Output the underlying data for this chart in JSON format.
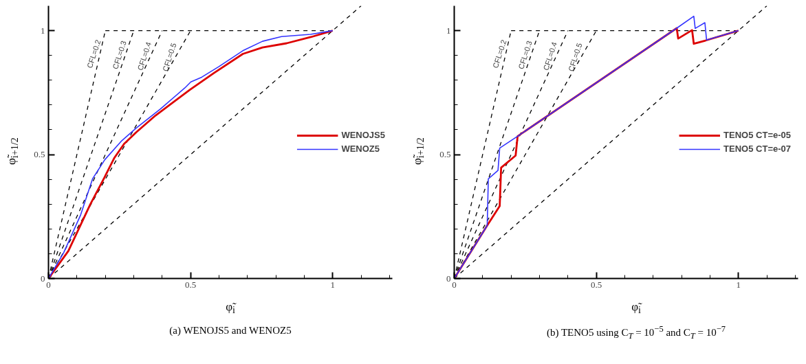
{
  "chart_data": [
    {
      "type": "line",
      "title": "(a) WENOJS5 and WENOZ5",
      "xlabel": "φ̃$_{i}$",
      "ylabel": "φ̃$_{i+1/2}$",
      "xlim": [
        0,
        1.21
      ],
      "ylim": [
        0,
        1.1
      ],
      "xticks": [
        0,
        {
          "value": 0.1,
          "label": null
        },
        {
          "value": 0.2,
          "label": null
        },
        {
          "value": 0.3,
          "label": null
        },
        {
          "value": 0.4,
          "label": null
        },
        0.5,
        {
          "value": 0.6,
          "label": null
        },
        {
          "value": 0.7,
          "label": null
        },
        {
          "value": 0.8,
          "label": null
        },
        {
          "value": 0.9,
          "label": null
        },
        1,
        {
          "value": 1.1,
          "label": null
        },
        {
          "value": 1.2,
          "label": null
        }
      ],
      "yticks": [
        0,
        {
          "value": 0.1,
          "label": null
        },
        {
          "value": 0.2,
          "label": null
        },
        {
          "value": 0.3,
          "label": null
        },
        {
          "value": 0.4,
          "label": null
        },
        0.5,
        {
          "value": 0.6,
          "label": null
        },
        {
          "value": 0.7,
          "label": null
        },
        {
          "value": 0.8,
          "label": null
        },
        {
          "value": 0.9,
          "label": null
        },
        1
      ],
      "grid": false,
      "legend": "right",
      "marker": "none",
      "annotations": [
        {
          "text": "CFL=0.2",
          "x": 0.181,
          "y": 0.906
        },
        {
          "text": "CFL=0.3",
          "x": 0.271,
          "y": 0.902
        },
        {
          "text": "CFL=0.4",
          "x": 0.359,
          "y": 0.897
        },
        {
          "text": "CFL=0.5",
          "x": 0.447,
          "y": 0.893
        }
      ],
      "series": [
        {
          "color": "#000000",
          "line_style": "dashed",
          "x": [
            0,
            1.1
          ],
          "values": [
            0,
            1.1
          ]
        },
        {
          "color": "#000000",
          "line_style": "dashed",
          "x": [
            0.2,
            1
          ],
          "values": [
            1,
            1
          ]
        },
        {
          "color": "#000000",
          "line_style": "dashed",
          "x": [
            0,
            0.2
          ],
          "values": [
            0,
            1
          ]
        },
        {
          "color": "#000000",
          "line_style": "dashed",
          "x": [
            0,
            0.3
          ],
          "values": [
            0,
            1
          ]
        },
        {
          "color": "#000000",
          "line_style": "dashed",
          "x": [
            0,
            0.4
          ],
          "values": [
            0,
            1
          ]
        },
        {
          "color": "#000000",
          "line_style": "dashed",
          "x": [
            0,
            0.5
          ],
          "values": [
            0,
            1
          ]
        },
        {
          "name": "WENOJS5",
          "color": "#dd0000",
          "line_style": "solid",
          "x": [
            0,
            0.07,
            0.147,
            0.198,
            0.232,
            0.266,
            0.309,
            0.377,
            0.497,
            0.582,
            0.684,
            0.753,
            0.838,
            0.923,
            1
          ],
          "values": [
            0,
            0.111,
            0.299,
            0.41,
            0.487,
            0.543,
            0.59,
            0.658,
            0.761,
            0.829,
            0.906,
            0.932,
            0.949,
            0.974,
            1
          ]
        },
        {
          "name": "WENOZ5",
          "color": "#3333ff",
          "line_style": "solid",
          "x": [
            0,
            0.053,
            0.113,
            0.155,
            0.198,
            0.258,
            0.309,
            0.394,
            0.48,
            0.501,
            0.539,
            0.6,
            0.684,
            0.753,
            0.82,
            0.922,
            1
          ],
          "values": [
            0,
            0.103,
            0.256,
            0.402,
            0.479,
            0.556,
            0.607,
            0.684,
            0.769,
            0.793,
            0.812,
            0.855,
            0.919,
            0.957,
            0.976,
            0.985,
            1
          ]
        }
      ]
    },
    {
      "type": "line",
      "title": "(b) TENO5 using C$_{T}$ = 10$^{−5}$ and C$_{T}$ = 10$^{−7}$",
      "xlabel": "φ̃$_{i}$",
      "ylabel": "φ̃$_{i+1/2}$",
      "xlim": [
        0,
        1.21
      ],
      "ylim": [
        0,
        1.1
      ],
      "xticks": [
        0,
        {
          "value": 0.1,
          "label": null
        },
        {
          "value": 0.2,
          "label": null
        },
        {
          "value": 0.3,
          "label": null
        },
        {
          "value": 0.4,
          "label": null
        },
        0.5,
        {
          "value": 0.6,
          "label": null
        },
        {
          "value": 0.7,
          "label": null
        },
        {
          "value": 0.8,
          "label": null
        },
        {
          "value": 0.9,
          "label": null
        },
        1,
        {
          "value": 1.1,
          "label": null
        },
        {
          "value": 1.2,
          "label": null
        }
      ],
      "yticks": [
        0,
        {
          "value": 0.1,
          "label": null
        },
        {
          "value": 0.2,
          "label": null
        },
        {
          "value": 0.3,
          "label": null
        },
        {
          "value": 0.4,
          "label": null
        },
        0.5,
        {
          "value": 0.6,
          "label": null
        },
        {
          "value": 0.7,
          "label": null
        },
        {
          "value": 0.8,
          "label": null
        },
        {
          "value": 0.9,
          "label": null
        },
        1
      ],
      "grid": false,
      "legend": "right",
      "marker": "none",
      "annotations": [
        {
          "text": "CFL=0.2",
          "x": 0.181,
          "y": 0.906
        },
        {
          "text": "CFL=0.3",
          "x": 0.271,
          "y": 0.902
        },
        {
          "text": "CFL=0.4",
          "x": 0.359,
          "y": 0.897
        },
        {
          "text": "CFL=0.5",
          "x": 0.447,
          "y": 0.893
        }
      ],
      "series": [
        {
          "color": "#000000",
          "line_style": "dashed",
          "x": [
            0,
            1.1
          ],
          "values": [
            0,
            1.1
          ]
        },
        {
          "color": "#000000",
          "line_style": "dashed",
          "x": [
            0.2,
            1
          ],
          "values": [
            1,
            1
          ]
        },
        {
          "color": "#000000",
          "line_style": "dashed",
          "x": [
            0,
            0.2
          ],
          "values": [
            0,
            1
          ]
        },
        {
          "color": "#000000",
          "line_style": "dashed",
          "x": [
            0,
            0.3
          ],
          "values": [
            0,
            1
          ]
        },
        {
          "color": "#000000",
          "line_style": "dashed",
          "x": [
            0,
            0.4
          ],
          "values": [
            0,
            1
          ]
        },
        {
          "color": "#000000",
          "line_style": "dashed",
          "x": [
            0,
            0.5
          ],
          "values": [
            0,
            1
          ]
        },
        {
          "name": "TENO5 CT=e-05",
          "color": "#dd0000",
          "line_style": "solid",
          "x": [
            0,
            0.116,
            0.16,
            0.165,
            0.216,
            0.223,
            0.783,
            0.788,
            0.837,
            0.843,
            0.884,
            1
          ],
          "values": [
            0,
            0.214,
            0.292,
            0.447,
            0.496,
            0.574,
            1.01,
            0.968,
            1.002,
            0.947,
            0.96,
            1
          ]
        },
        {
          "name": "TENO5 CT=e-07",
          "color": "#3333ff",
          "line_style": "solid",
          "x": [
            0,
            0.116,
            0.12,
            0.154,
            0.16,
            0.223,
            0.783,
            0.843,
            0.848,
            0.882,
            0.888,
            1
          ],
          "values": [
            0,
            0.214,
            0.402,
            0.436,
            0.526,
            0.574,
            1.01,
            1.058,
            1.009,
            1.032,
            0.962,
            1
          ]
        }
      ]
    }
  ]
}
